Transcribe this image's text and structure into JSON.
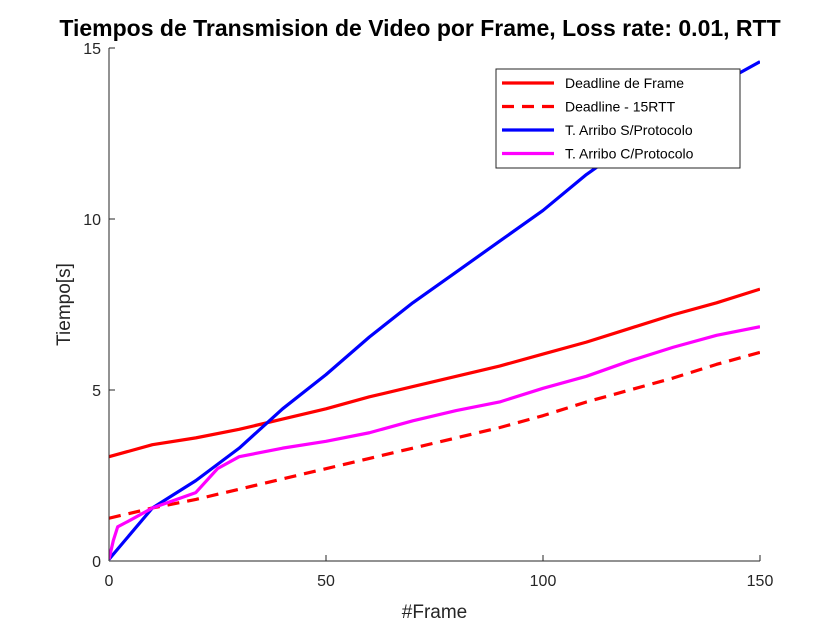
{
  "chart_data": {
    "type": "line",
    "title": "Tiempos de Transmision de Video por Frame, Loss rate: 0.01, RTT",
    "xlabel": "#Frame",
    "ylabel": "Tiempo[s]",
    "xlim": [
      0,
      150
    ],
    "ylim": [
      0,
      15
    ],
    "xticks": [
      0,
      50,
      100,
      150
    ],
    "yticks": [
      0,
      5,
      10,
      15
    ],
    "xtick_labels": [
      "0",
      "50",
      "100",
      "150"
    ],
    "ytick_labels": [
      "0",
      "5",
      "10",
      "15"
    ],
    "grid": false,
    "legend_position": "top-right",
    "series": [
      {
        "name": "Deadline de Frame",
        "color": "#ff0000",
        "style": "solid",
        "x": [
          0,
          10,
          20,
          30,
          40,
          50,
          60,
          70,
          80,
          90,
          100,
          110,
          120,
          130,
          140,
          150
        ],
        "y": [
          3.05,
          3.4,
          3.6,
          3.85,
          4.15,
          4.45,
          4.8,
          5.1,
          5.4,
          5.7,
          6.05,
          6.4,
          6.8,
          7.2,
          7.55,
          7.95
        ]
      },
      {
        "name": "Deadline - 15RTT",
        "color": "#ff0000",
        "style": "dashed",
        "x": [
          0,
          10,
          20,
          30,
          40,
          50,
          60,
          70,
          80,
          90,
          100,
          110,
          120,
          130,
          140,
          150
        ],
        "y": [
          1.25,
          1.55,
          1.8,
          2.1,
          2.4,
          2.7,
          3.0,
          3.3,
          3.6,
          3.9,
          4.25,
          4.65,
          5.0,
          5.35,
          5.75,
          6.1
        ]
      },
      {
        "name": "T. Arribo S/Protocolo",
        "color": "#0000ff",
        "style": "solid",
        "x": [
          0,
          10,
          20,
          30,
          40,
          50,
          60,
          70,
          80,
          90,
          100,
          110,
          120,
          130,
          140,
          150
        ],
        "y": [
          0.05,
          1.55,
          2.35,
          3.3,
          4.45,
          5.45,
          6.55,
          7.55,
          8.45,
          9.35,
          10.25,
          11.3,
          12.2,
          13.05,
          13.9,
          14.6
        ]
      },
      {
        "name": "T. Arribo C/Protocolo",
        "color": "#ff00ff",
        "style": "solid",
        "x": [
          0,
          1,
          2,
          5,
          10,
          20,
          25,
          30,
          40,
          50,
          60,
          70,
          80,
          90,
          100,
          110,
          120,
          130,
          140,
          150
        ],
        "y": [
          0.05,
          0.6,
          1.0,
          1.2,
          1.55,
          2.0,
          2.7,
          3.05,
          3.3,
          3.5,
          3.75,
          4.1,
          4.4,
          4.65,
          5.05,
          5.4,
          5.85,
          6.25,
          6.6,
          6.85
        ]
      }
    ]
  }
}
